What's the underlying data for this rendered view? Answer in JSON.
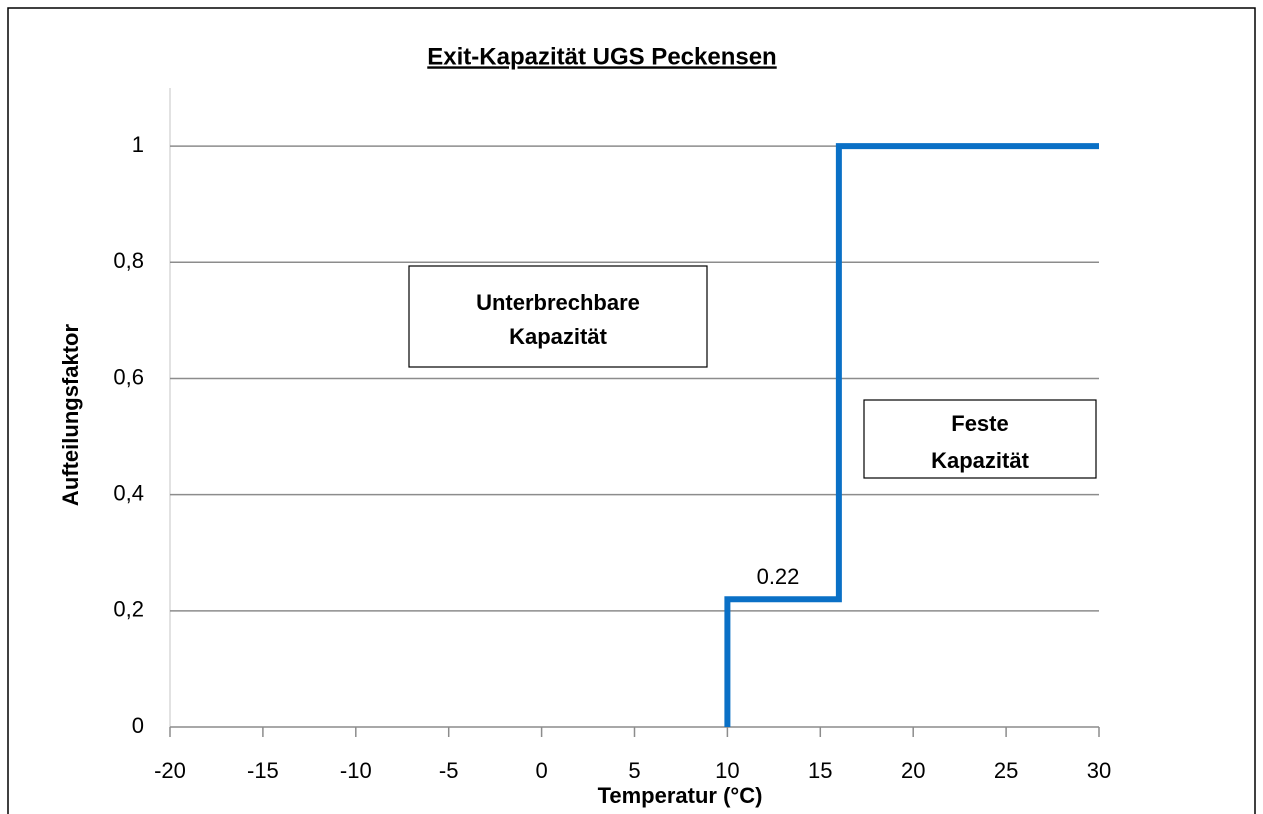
{
  "chart_data": {
    "type": "line",
    "title": "Exit-Kapazität UGS Peckensen",
    "x_label": "Temperatur (°C)",
    "y_label": "Aufteilungsfaktor",
    "x": [
      10,
      10,
      16,
      16,
      30
    ],
    "values": [
      0,
      0.22,
      0.22,
      1,
      1
    ],
    "color": "#0a70c6",
    "xlim": [
      -20,
      30
    ],
    "xticks": [
      -20,
      -15,
      -10,
      -5,
      0,
      5,
      10,
      15,
      20,
      25,
      30
    ],
    "ylim": [
      0,
      1.1
    ],
    "yticks": [
      0,
      {
        "value": 0.2,
        "label": "0,2"
      },
      {
        "value": 0.4,
        "label": "0,4"
      },
      {
        "value": 0.6,
        "label": "0,6"
      },
      {
        "value": 0.8,
        "label": "0,8"
      },
      1
    ],
    "grid": true,
    "annotations": [
      {
        "text": "0.22"
      },
      {
        "lines": [
          "Unterbrechbare",
          "Kapazität"
        ]
      },
      {
        "lines": [
          "Feste",
          "Kapazität"
        ]
      }
    ]
  }
}
